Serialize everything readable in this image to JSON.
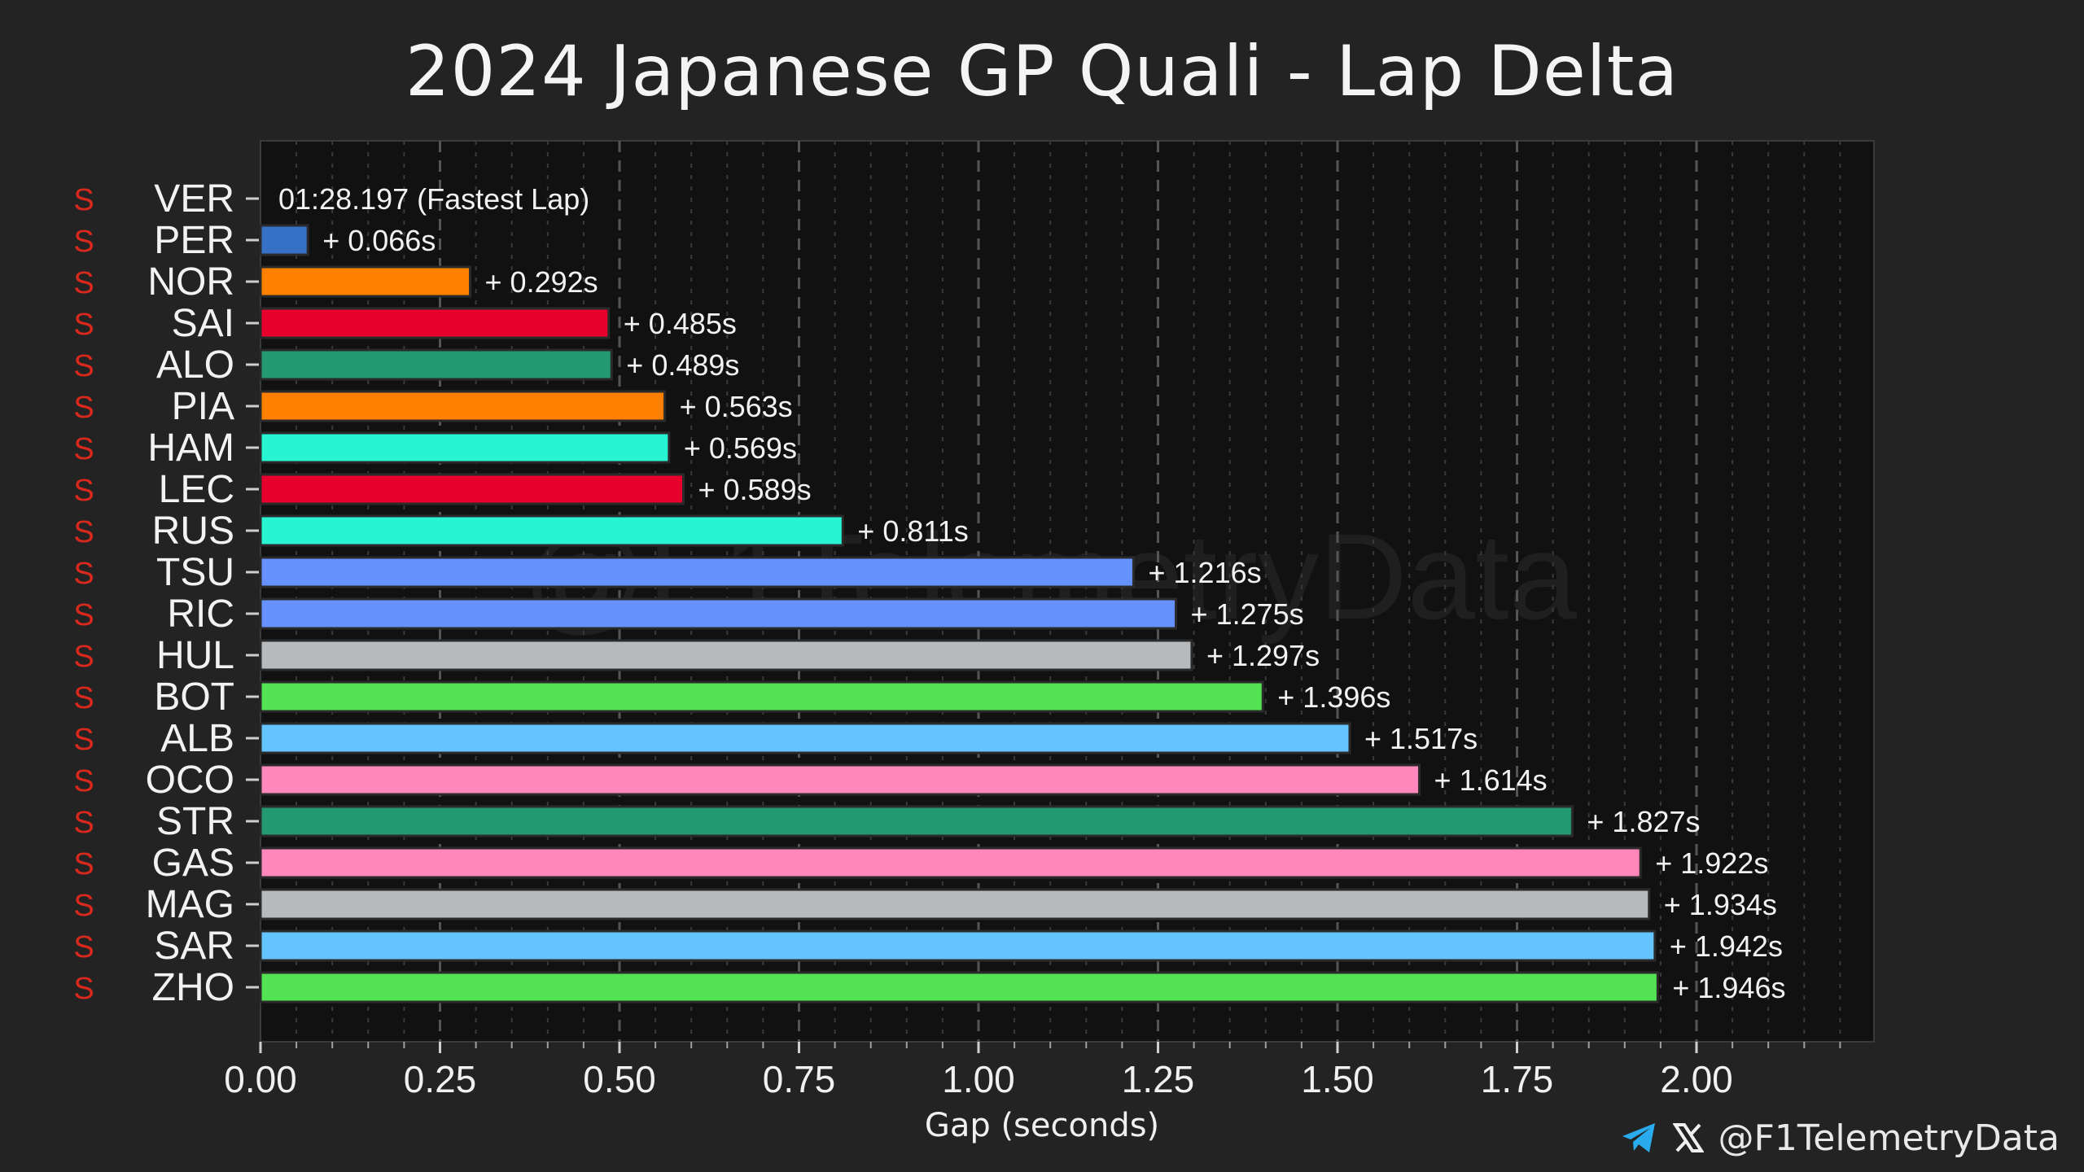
{
  "chart_data": {
    "type": "bar",
    "orientation": "horizontal",
    "title": "2024 Japanese GP Quali - Lap Delta",
    "xlabel": "Gap (seconds)",
    "ylabel": "",
    "xlim": [
      0,
      2.25
    ],
    "x_ticks": [
      "0.00",
      "0.25",
      "0.50",
      "0.75",
      "1.00",
      "1.25",
      "1.50",
      "1.75",
      "2.00"
    ],
    "grid": "vertical dashed",
    "tyre_label": "S",
    "drivers": [
      {
        "code": "VER",
        "gap": 0.0,
        "label": "01:28.197 (Fastest Lap)",
        "color": "#3671C6",
        "tyre": "S"
      },
      {
        "code": "PER",
        "gap": 0.066,
        "label": "+ 0.066s",
        "color": "#3671C6",
        "tyre": "S"
      },
      {
        "code": "NOR",
        "gap": 0.292,
        "label": "+ 0.292s",
        "color": "#FF8000",
        "tyre": "S"
      },
      {
        "code": "SAI",
        "gap": 0.485,
        "label": "+ 0.485s",
        "color": "#E8002D",
        "tyre": "S"
      },
      {
        "code": "ALO",
        "gap": 0.489,
        "label": "+ 0.489s",
        "color": "#229971",
        "tyre": "S"
      },
      {
        "code": "PIA",
        "gap": 0.563,
        "label": "+ 0.563s",
        "color": "#FF8000",
        "tyre": "S"
      },
      {
        "code": "HAM",
        "gap": 0.569,
        "label": "+ 0.569s",
        "color": "#27F4D2",
        "tyre": "S"
      },
      {
        "code": "LEC",
        "gap": 0.589,
        "label": "+ 0.589s",
        "color": "#E8002D",
        "tyre": "S"
      },
      {
        "code": "RUS",
        "gap": 0.811,
        "label": "+ 0.811s",
        "color": "#27F4D2",
        "tyre": "S"
      },
      {
        "code": "TSU",
        "gap": 1.216,
        "label": "+ 1.216s",
        "color": "#6692FF",
        "tyre": "S"
      },
      {
        "code": "RIC",
        "gap": 1.275,
        "label": "+ 1.275s",
        "color": "#6692FF",
        "tyre": "S"
      },
      {
        "code": "HUL",
        "gap": 1.297,
        "label": "+ 1.297s",
        "color": "#B6BABD",
        "tyre": "S"
      },
      {
        "code": "BOT",
        "gap": 1.396,
        "label": "+ 1.396s",
        "color": "#52E252",
        "tyre": "S"
      },
      {
        "code": "ALB",
        "gap": 1.517,
        "label": "+ 1.517s",
        "color": "#64C4FF",
        "tyre": "S"
      },
      {
        "code": "OCO",
        "gap": 1.614,
        "label": "+ 1.614s",
        "color": "#FF87BC",
        "tyre": "S"
      },
      {
        "code": "STR",
        "gap": 1.827,
        "label": "+ 1.827s",
        "color": "#229971",
        "tyre": "S"
      },
      {
        "code": "GAS",
        "gap": 1.922,
        "label": "+ 1.922s",
        "color": "#FF87BC",
        "tyre": "S"
      },
      {
        "code": "MAG",
        "gap": 1.934,
        "label": "+ 1.934s",
        "color": "#B6BABD",
        "tyre": "S"
      },
      {
        "code": "SAR",
        "gap": 1.942,
        "label": "+ 1.942s",
        "color": "#64C4FF",
        "tyre": "S"
      },
      {
        "code": "ZHO",
        "gap": 1.946,
        "label": "+ 1.946s",
        "color": "#52E252",
        "tyre": "S"
      }
    ]
  },
  "watermark": "@F1TelemetryData",
  "footer": {
    "handle": "@F1TelemetryData",
    "icons": [
      "telegram-icon",
      "x-icon"
    ],
    "telegram_color": "#2AABEE"
  },
  "colors": {
    "background": "#232323",
    "plot_background": "#111111",
    "tyre_soft": "#DA291C",
    "text": "#F2F2F2"
  }
}
